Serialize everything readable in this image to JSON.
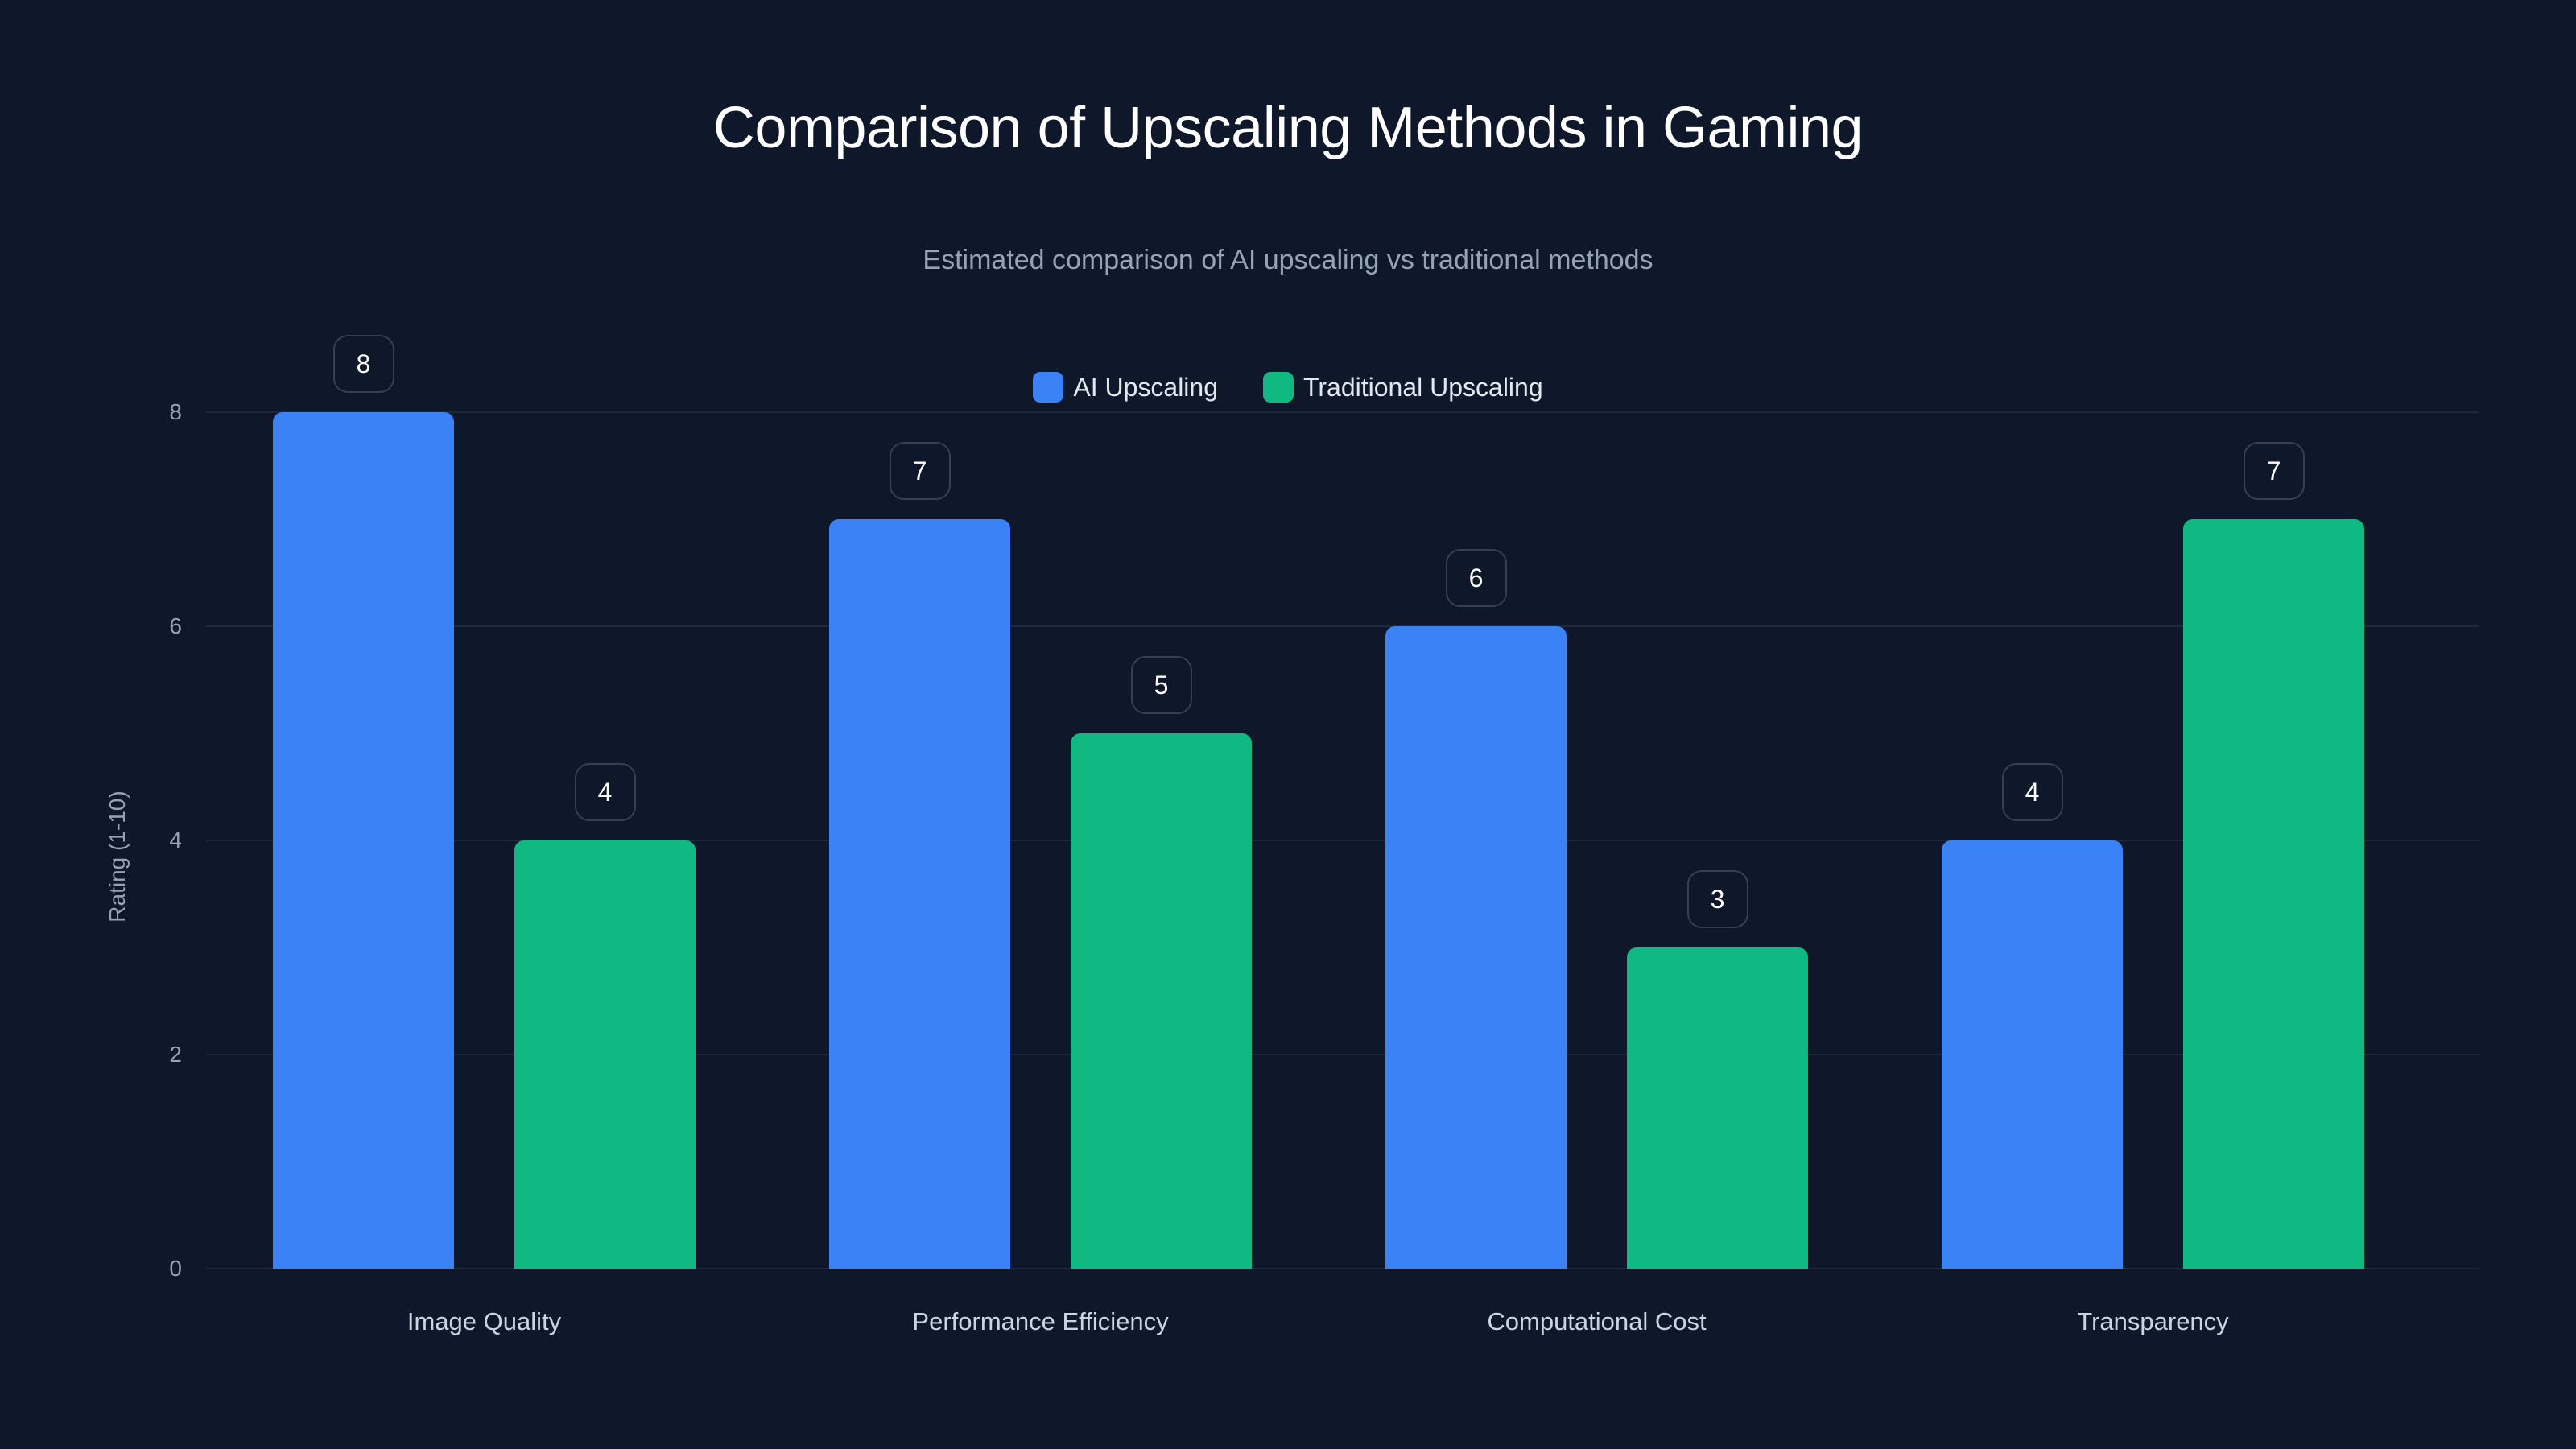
{
  "chart_data": {
    "type": "bar",
    "title": "Comparison of Upscaling Methods in Gaming",
    "subtitle": "Estimated comparison of AI upscaling vs traditional methods",
    "xlabel": "",
    "ylabel": "Rating (1-10)",
    "ylim": [
      0,
      8
    ],
    "yticks": [
      "0",
      "2",
      "4",
      "6",
      "8"
    ],
    "grid": true,
    "legend_position": "top-center",
    "categories": [
      "Image Quality",
      "Performance Efficiency",
      "Computational Cost",
      "Transparency"
    ],
    "series": [
      {
        "name": "AI Upscaling",
        "color": "#3b82f6",
        "values": [
          8,
          7,
          6,
          4
        ]
      },
      {
        "name": "Traditional Upscaling",
        "color": "#10b981",
        "values": [
          4,
          5,
          3,
          7
        ]
      }
    ]
  },
  "colors": {
    "background": "#0f172a",
    "gridline": "#1e293b",
    "ai": "#3b82f6",
    "traditional": "#10b981"
  }
}
